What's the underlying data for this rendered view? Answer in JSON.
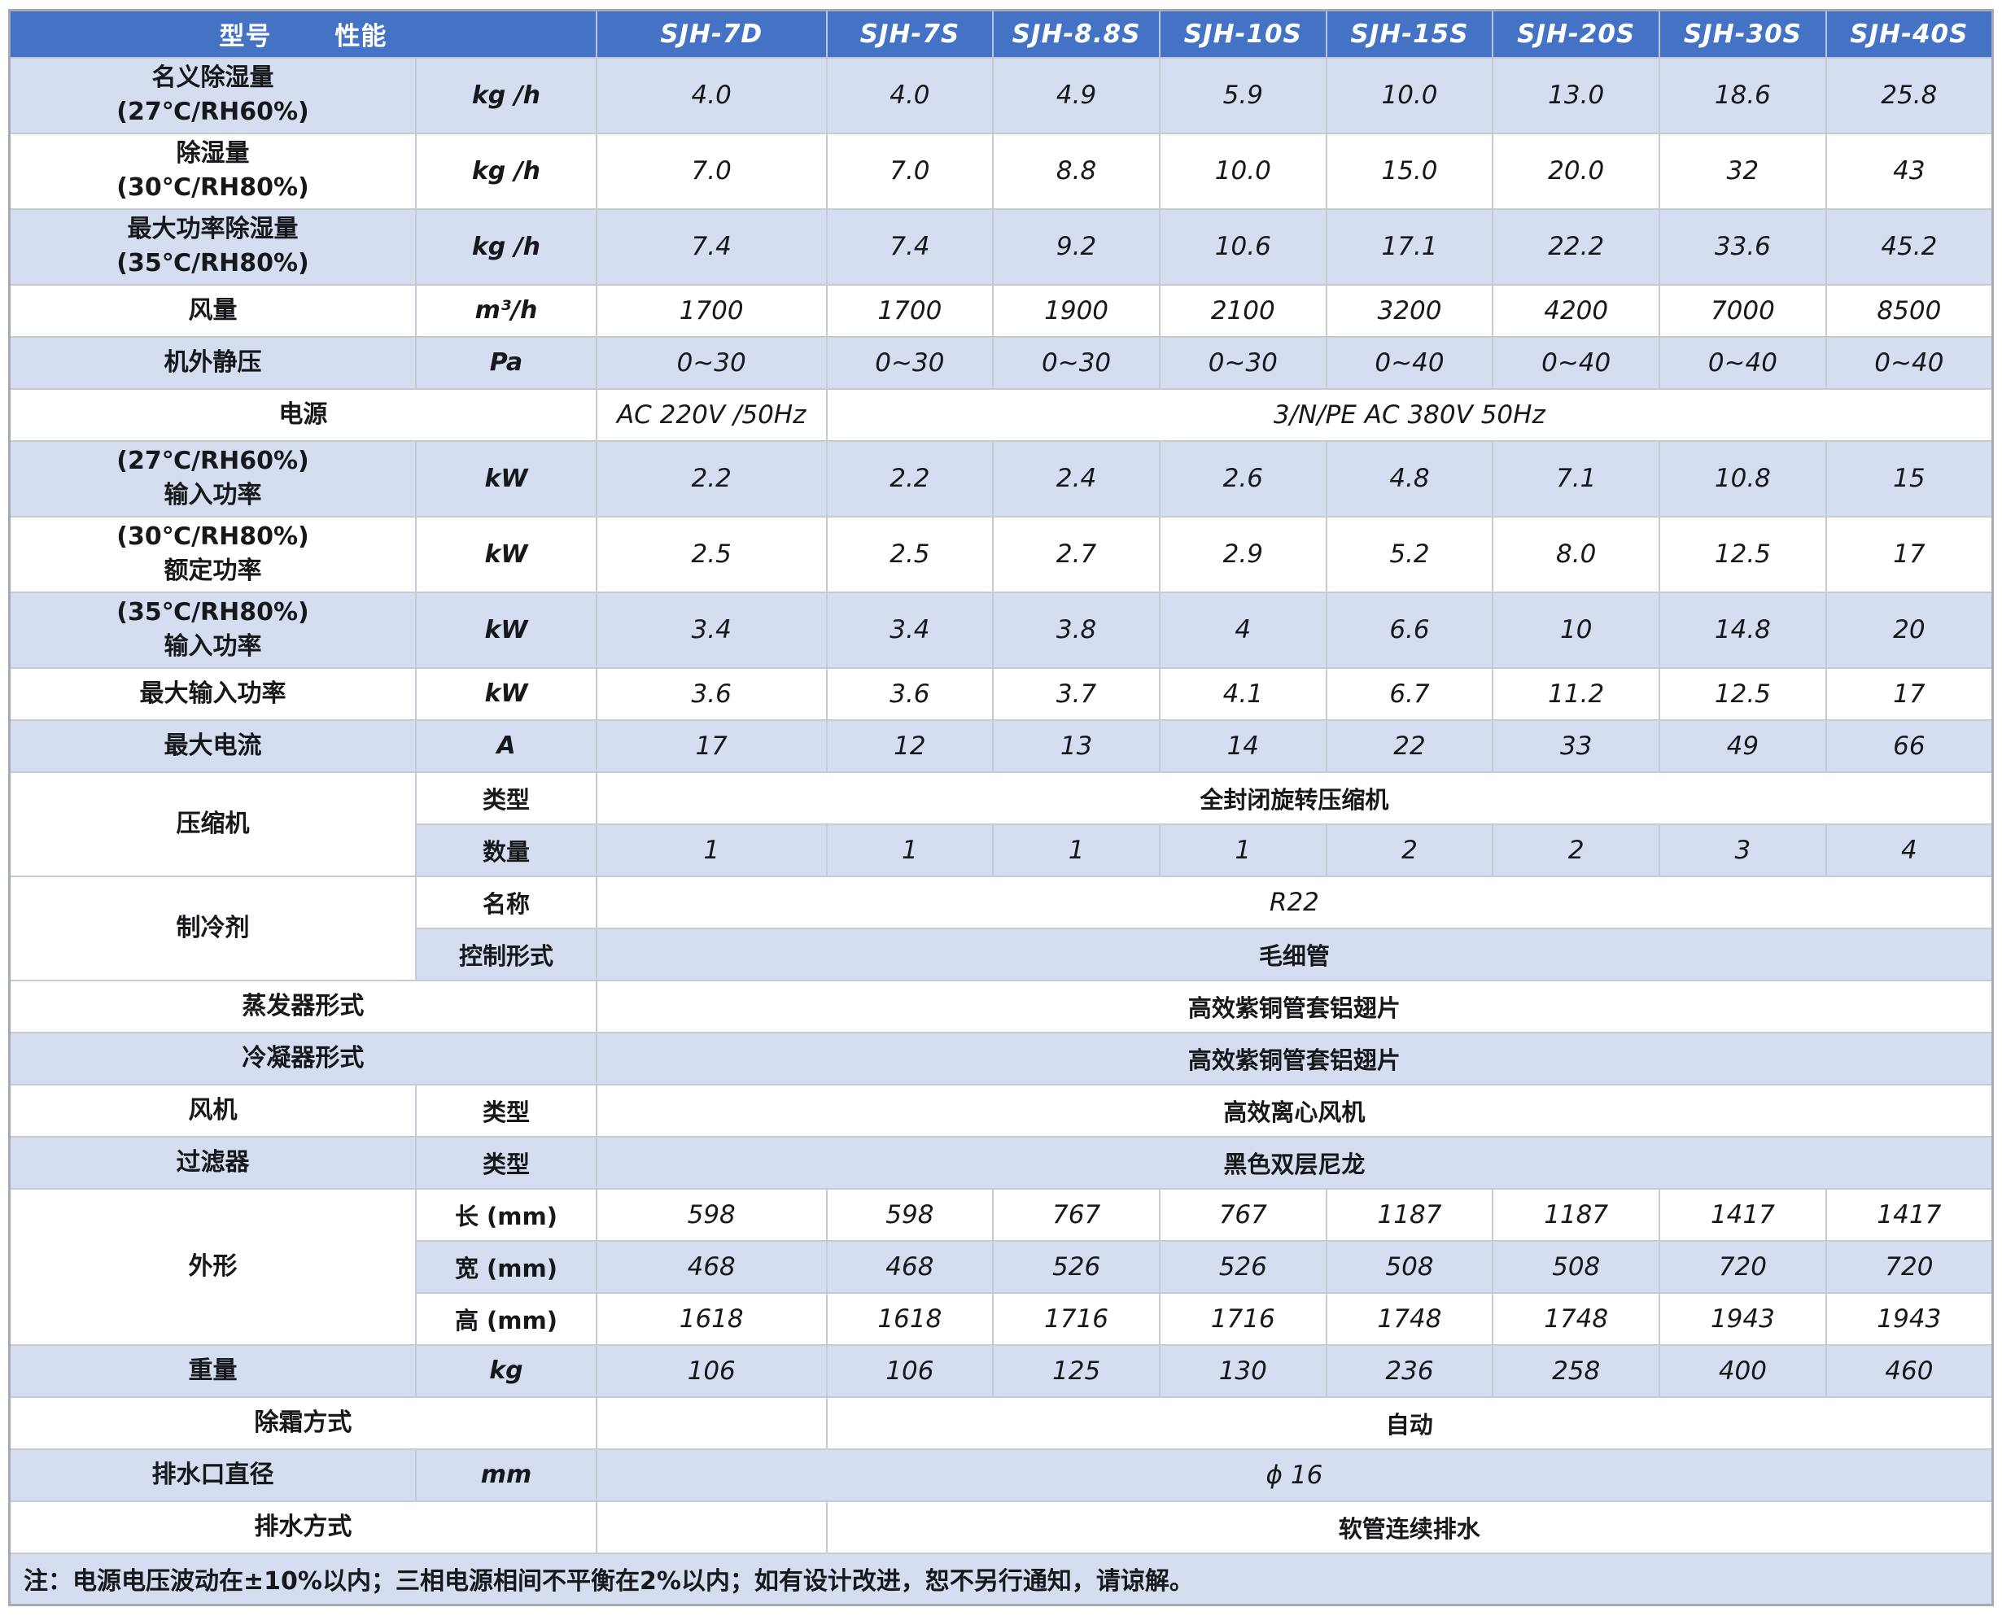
{
  "table": {
    "header": {
      "model_label": "型号",
      "perf_label": "性能",
      "models": [
        "SJH-7D",
        "SJH-7S",
        "SJH-8.8S",
        "SJH-10S",
        "SJH-15S",
        "SJH-20S",
        "SJH-30S",
        "SJH-40S"
      ]
    },
    "colors": {
      "header_bg": "#4472c4",
      "header_text": "#ffffff",
      "row_alt_bg": "#d5def1",
      "row_bg": "#ffffff",
      "grid_line": "#c6cad2",
      "text": "#16181c"
    },
    "rows": [
      {
        "shade": "b",
        "h": 2,
        "cells": [
          {
            "k": "label",
            "t": "名义除湿量\n(27℃/RH60%)"
          },
          {
            "k": "unit",
            "t": "kg /h"
          },
          {
            "k": "val",
            "t": "4.0"
          },
          {
            "k": "val",
            "t": "4.0"
          },
          {
            "k": "val",
            "t": "4.9"
          },
          {
            "k": "val",
            "t": "5.9"
          },
          {
            "k": "val",
            "t": "10.0"
          },
          {
            "k": "val",
            "t": "13.0"
          },
          {
            "k": "val",
            "t": "18.6"
          },
          {
            "k": "val",
            "t": "25.8"
          }
        ]
      },
      {
        "shade": "w",
        "h": 2,
        "cells": [
          {
            "k": "label",
            "t": "除湿量\n(30℃/RH80%)"
          },
          {
            "k": "unit",
            "t": "kg /h"
          },
          {
            "k": "val",
            "t": "7.0"
          },
          {
            "k": "val",
            "t": "7.0"
          },
          {
            "k": "val",
            "t": "8.8"
          },
          {
            "k": "val",
            "t": "10.0"
          },
          {
            "k": "val",
            "t": "15.0"
          },
          {
            "k": "val",
            "t": "20.0"
          },
          {
            "k": "val",
            "t": "32"
          },
          {
            "k": "val",
            "t": "43"
          }
        ]
      },
      {
        "shade": "b",
        "h": 2,
        "cells": [
          {
            "k": "label",
            "t": "最大功率除湿量\n(35℃/RH80%)"
          },
          {
            "k": "unit",
            "t": "kg /h"
          },
          {
            "k": "val",
            "t": "7.4"
          },
          {
            "k": "val",
            "t": "7.4"
          },
          {
            "k": "val",
            "t": "9.2"
          },
          {
            "k": "val",
            "t": "10.6"
          },
          {
            "k": "val",
            "t": "17.1"
          },
          {
            "k": "val",
            "t": "22.2"
          },
          {
            "k": "val",
            "t": "33.6"
          },
          {
            "k": "val",
            "t": "45.2"
          }
        ]
      },
      {
        "shade": "w",
        "h": 1,
        "cells": [
          {
            "k": "label",
            "t": "风量"
          },
          {
            "k": "unit",
            "t": "m³/h"
          },
          {
            "k": "val",
            "t": "1700"
          },
          {
            "k": "val",
            "t": "1700"
          },
          {
            "k": "val",
            "t": "1900"
          },
          {
            "k": "val",
            "t": "2100"
          },
          {
            "k": "val",
            "t": "3200"
          },
          {
            "k": "val",
            "t": "4200"
          },
          {
            "k": "val",
            "t": "7000"
          },
          {
            "k": "val",
            "t": "8500"
          }
        ]
      },
      {
        "shade": "b",
        "h": 1,
        "cells": [
          {
            "k": "label",
            "t": "机外静压"
          },
          {
            "k": "unit",
            "t": "Pa"
          },
          {
            "k": "val",
            "t": "0~30"
          },
          {
            "k": "val",
            "t": "0~30"
          },
          {
            "k": "val",
            "t": "0~30"
          },
          {
            "k": "val",
            "t": "0~30"
          },
          {
            "k": "val",
            "t": "0~40"
          },
          {
            "k": "val",
            "t": "0~40"
          },
          {
            "k": "val",
            "t": "0~40"
          },
          {
            "k": "val",
            "t": "0~40"
          }
        ]
      },
      {
        "shade": "w",
        "h": 1,
        "cells": [
          {
            "k": "label",
            "cs": 2,
            "t": "电源"
          },
          {
            "k": "val",
            "t": "AC 220V /50Hz"
          },
          {
            "k": "val",
            "cs": 7,
            "t": "3/N/PE AC 380V 50Hz"
          }
        ]
      },
      {
        "shade": "b",
        "h": 2,
        "cells": [
          {
            "k": "label",
            "t": "(27℃/RH60%)\n输入功率"
          },
          {
            "k": "unit",
            "t": "kW"
          },
          {
            "k": "val",
            "t": "2.2"
          },
          {
            "k": "val",
            "t": "2.2"
          },
          {
            "k": "val",
            "t": "2.4"
          },
          {
            "k": "val",
            "t": "2.6"
          },
          {
            "k": "val",
            "t": "4.8"
          },
          {
            "k": "val",
            "t": "7.1"
          },
          {
            "k": "val",
            "t": "10.8"
          },
          {
            "k": "val",
            "t": "15"
          }
        ]
      },
      {
        "shade": "w",
        "h": 2,
        "cells": [
          {
            "k": "label",
            "t": "(30℃/RH80%)\n额定功率"
          },
          {
            "k": "unit",
            "t": "kW"
          },
          {
            "k": "val",
            "t": "2.5"
          },
          {
            "k": "val",
            "t": "2.5"
          },
          {
            "k": "val",
            "t": "2.7"
          },
          {
            "k": "val",
            "t": "2.9"
          },
          {
            "k": "val",
            "t": "5.2"
          },
          {
            "k": "val",
            "t": "8.0"
          },
          {
            "k": "val",
            "t": "12.5"
          },
          {
            "k": "val",
            "t": "17"
          }
        ]
      },
      {
        "shade": "b",
        "h": 2,
        "cells": [
          {
            "k": "label",
            "t": "(35℃/RH80%)\n输入功率"
          },
          {
            "k": "unit",
            "t": "kW"
          },
          {
            "k": "val",
            "t": "3.4"
          },
          {
            "k": "val",
            "t": "3.4"
          },
          {
            "k": "val",
            "t": "3.8"
          },
          {
            "k": "val",
            "t": "4"
          },
          {
            "k": "val",
            "t": "6.6"
          },
          {
            "k": "val",
            "t": "10"
          },
          {
            "k": "val",
            "t": "14.8"
          },
          {
            "k": "val",
            "t": "20"
          }
        ]
      },
      {
        "shade": "w",
        "h": 1,
        "cells": [
          {
            "k": "label",
            "t": "最大输入功率"
          },
          {
            "k": "unit",
            "t": "kW"
          },
          {
            "k": "val",
            "t": "3.6"
          },
          {
            "k": "val",
            "t": "3.6"
          },
          {
            "k": "val",
            "t": "3.7"
          },
          {
            "k": "val",
            "t": "4.1"
          },
          {
            "k": "val",
            "t": "6.7"
          },
          {
            "k": "val",
            "t": "11.2"
          },
          {
            "k": "val",
            "t": "12.5"
          },
          {
            "k": "val",
            "t": "17"
          }
        ]
      },
      {
        "shade": "b",
        "h": 1,
        "cells": [
          {
            "k": "label",
            "t": "最大电流"
          },
          {
            "k": "unit",
            "t": "A"
          },
          {
            "k": "val",
            "t": "17"
          },
          {
            "k": "val",
            "t": "12"
          },
          {
            "k": "val",
            "t": "13"
          },
          {
            "k": "val",
            "t": "14"
          },
          {
            "k": "val",
            "t": "22"
          },
          {
            "k": "val",
            "t": "33"
          },
          {
            "k": "val",
            "t": "49"
          },
          {
            "k": "val",
            "t": "66"
          }
        ]
      },
      {
        "shade": "w",
        "h": 1,
        "cells": [
          {
            "k": "label",
            "rs": 2,
            "t": "压缩机"
          },
          {
            "k": "unit",
            "t": "类型"
          },
          {
            "k": "val",
            "cs": 8,
            "t": "全封闭旋转压缩机"
          }
        ]
      },
      {
        "shade": "b",
        "h": 1,
        "cells": [
          {
            "k": "unit",
            "t": "数量"
          },
          {
            "k": "val",
            "t": "1"
          },
          {
            "k": "val",
            "t": "1"
          },
          {
            "k": "val",
            "t": "1"
          },
          {
            "k": "val",
            "t": "1"
          },
          {
            "k": "val",
            "t": "2"
          },
          {
            "k": "val",
            "t": "2"
          },
          {
            "k": "val",
            "t": "3"
          },
          {
            "k": "val",
            "t": "4"
          }
        ]
      },
      {
        "shade": "w",
        "h": 1,
        "cells": [
          {
            "k": "label",
            "rs": 2,
            "t": "制冷剂"
          },
          {
            "k": "unit",
            "t": "名称"
          },
          {
            "k": "val",
            "cs": 8,
            "t": "R22"
          }
        ]
      },
      {
        "shade": "b",
        "h": 1,
        "cells": [
          {
            "k": "unit",
            "t": "控制形式"
          },
          {
            "k": "val",
            "cs": 8,
            "t": "毛细管"
          }
        ]
      },
      {
        "shade": "w",
        "h": 1,
        "cells": [
          {
            "k": "label",
            "cs": 2,
            "t": "蒸发器形式"
          },
          {
            "k": "val",
            "cs": 8,
            "t": "高效紫铜管套铝翅片"
          }
        ]
      },
      {
        "shade": "b",
        "h": 1,
        "cells": [
          {
            "k": "label",
            "cs": 2,
            "t": "冷凝器形式"
          },
          {
            "k": "val",
            "cs": 8,
            "t": "高效紫铜管套铝翅片"
          }
        ]
      },
      {
        "shade": "w",
        "h": 1,
        "cells": [
          {
            "k": "label",
            "t": "风机"
          },
          {
            "k": "unit",
            "t": "类型"
          },
          {
            "k": "val",
            "cs": 8,
            "t": "高效离心风机"
          }
        ]
      },
      {
        "shade": "b",
        "h": 1,
        "cells": [
          {
            "k": "label",
            "t": "过滤器"
          },
          {
            "k": "unit",
            "t": "类型"
          },
          {
            "k": "val",
            "cs": 8,
            "t": "黑色双层尼龙"
          }
        ]
      },
      {
        "shade": "w",
        "h": 1,
        "cells": [
          {
            "k": "label",
            "rs": 3,
            "t": "外形"
          },
          {
            "k": "unit",
            "t": "长 (mm)"
          },
          {
            "k": "val",
            "t": "598"
          },
          {
            "k": "val",
            "t": "598"
          },
          {
            "k": "val",
            "t": "767"
          },
          {
            "k": "val",
            "t": "767"
          },
          {
            "k": "val",
            "t": "1187"
          },
          {
            "k": "val",
            "t": "1187"
          },
          {
            "k": "val",
            "t": "1417"
          },
          {
            "k": "val",
            "t": "1417"
          }
        ]
      },
      {
        "shade": "b",
        "h": 1,
        "cells": [
          {
            "k": "unit",
            "t": "宽 (mm)"
          },
          {
            "k": "val",
            "t": "468"
          },
          {
            "k": "val",
            "t": "468"
          },
          {
            "k": "val",
            "t": "526"
          },
          {
            "k": "val",
            "t": "526"
          },
          {
            "k": "val",
            "t": "508"
          },
          {
            "k": "val",
            "t": "508"
          },
          {
            "k": "val",
            "t": "720"
          },
          {
            "k": "val",
            "t": "720"
          }
        ]
      },
      {
        "shade": "w",
        "h": 1,
        "cells": [
          {
            "k": "unit",
            "t": "高 (mm)"
          },
          {
            "k": "val",
            "t": "1618"
          },
          {
            "k": "val",
            "t": "1618"
          },
          {
            "k": "val",
            "t": "1716"
          },
          {
            "k": "val",
            "t": "1716"
          },
          {
            "k": "val",
            "t": "1748"
          },
          {
            "k": "val",
            "t": "1748"
          },
          {
            "k": "val",
            "t": "1943"
          },
          {
            "k": "val",
            "t": "1943"
          }
        ]
      },
      {
        "shade": "b",
        "h": 1,
        "cells": [
          {
            "k": "label",
            "t": "重量"
          },
          {
            "k": "unit",
            "t": "kg"
          },
          {
            "k": "val",
            "t": "106"
          },
          {
            "k": "val",
            "t": "106"
          },
          {
            "k": "val",
            "t": "125"
          },
          {
            "k": "val",
            "t": "130"
          },
          {
            "k": "val",
            "t": "236"
          },
          {
            "k": "val",
            "t": "258"
          },
          {
            "k": "val",
            "t": "400"
          },
          {
            "k": "val",
            "t": "460"
          }
        ]
      },
      {
        "shade": "w",
        "h": 1,
        "cells": [
          {
            "k": "label",
            "cs": 2,
            "t": "除霜方式"
          },
          {
            "k": "val",
            "t": ""
          },
          {
            "k": "val",
            "cs": 7,
            "t": "自动"
          }
        ]
      },
      {
        "shade": "b",
        "h": 1,
        "cells": [
          {
            "k": "label",
            "t": "排水口直径"
          },
          {
            "k": "unit",
            "t": "mm"
          },
          {
            "k": "val",
            "cs": 8,
            "t": "ϕ 16"
          }
        ]
      },
      {
        "shade": "w",
        "h": 1,
        "cells": [
          {
            "k": "label",
            "cs": 2,
            "t": "排水方式"
          },
          {
            "k": "val",
            "t": ""
          },
          {
            "k": "val",
            "cs": 7,
            "t": "软管连续排水"
          }
        ]
      },
      {
        "shade": "b",
        "h": 1,
        "cells": [
          {
            "k": "note",
            "cs": 10,
            "t": "注：电源电压波动在±10%以内；三相电源相间不平衡在2%以内；如有设计改进，恕不另行通知，请谅解。"
          }
        ]
      }
    ]
  }
}
